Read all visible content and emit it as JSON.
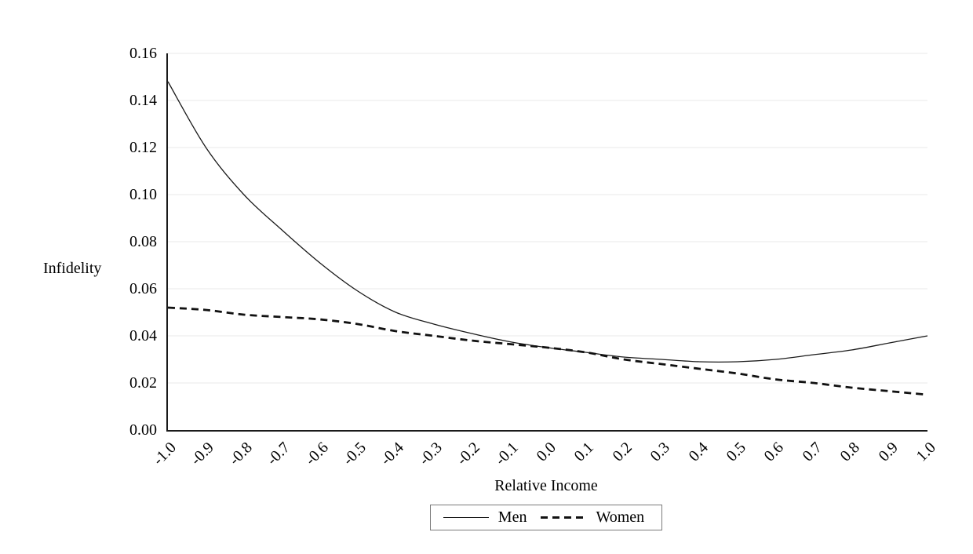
{
  "chart_data": {
    "type": "line",
    "title": "",
    "xlabel": "Relative Income",
    "ylabel": "Infidelity",
    "x": [
      -1.0,
      -0.9,
      -0.8,
      -0.7,
      -0.6,
      -0.5,
      -0.4,
      -0.3,
      -0.2,
      -0.1,
      0.0,
      0.1,
      0.2,
      0.3,
      0.4,
      0.5,
      0.6,
      0.7,
      0.8,
      0.9,
      1.0
    ],
    "x_tick_labels": [
      "-1.0",
      "-0.9",
      "-0.8",
      "-0.7",
      "-0.6",
      "-0.5",
      "-0.4",
      "-0.3",
      "-0.2",
      "-0.1",
      "0.0",
      "0.1",
      "0.2",
      "0.3",
      "0.4",
      "0.5",
      "0.6",
      "0.7",
      "0.8",
      "0.9",
      "1.0"
    ],
    "series": [
      {
        "name": "Men",
        "style": "solid",
        "values": [
          0.148,
          0.12,
          0.1,
          0.085,
          0.071,
          0.059,
          0.05,
          0.045,
          0.041,
          0.0375,
          0.035,
          0.033,
          0.031,
          0.03,
          0.029,
          0.029,
          0.03,
          0.032,
          0.034,
          0.037,
          0.04
        ]
      },
      {
        "name": "Women",
        "style": "dashed",
        "values": [
          0.052,
          0.051,
          0.049,
          0.048,
          0.047,
          0.045,
          0.042,
          0.04,
          0.038,
          0.0365,
          0.035,
          0.033,
          0.03,
          0.028,
          0.026,
          0.024,
          0.0215,
          0.02,
          0.018,
          0.0165,
          0.015
        ]
      }
    ],
    "xlim": [
      -1.0,
      1.0
    ],
    "ylim": [
      0.0,
      0.16
    ],
    "y_ticks": [
      0.0,
      0.02,
      0.04,
      0.06,
      0.08,
      0.1,
      0.12,
      0.14,
      0.16
    ],
    "y_tick_labels": [
      "0.00",
      "0.02",
      "0.04",
      "0.06",
      "0.08",
      "0.10",
      "0.12",
      "0.14",
      "0.16"
    ],
    "grid": true,
    "legend_position": "bottom",
    "colors": {
      "line": "#1a1a1a",
      "grid": "#e8e8e8",
      "axis": "#1a1a1a",
      "legend_border": "#7a7a7a"
    }
  }
}
